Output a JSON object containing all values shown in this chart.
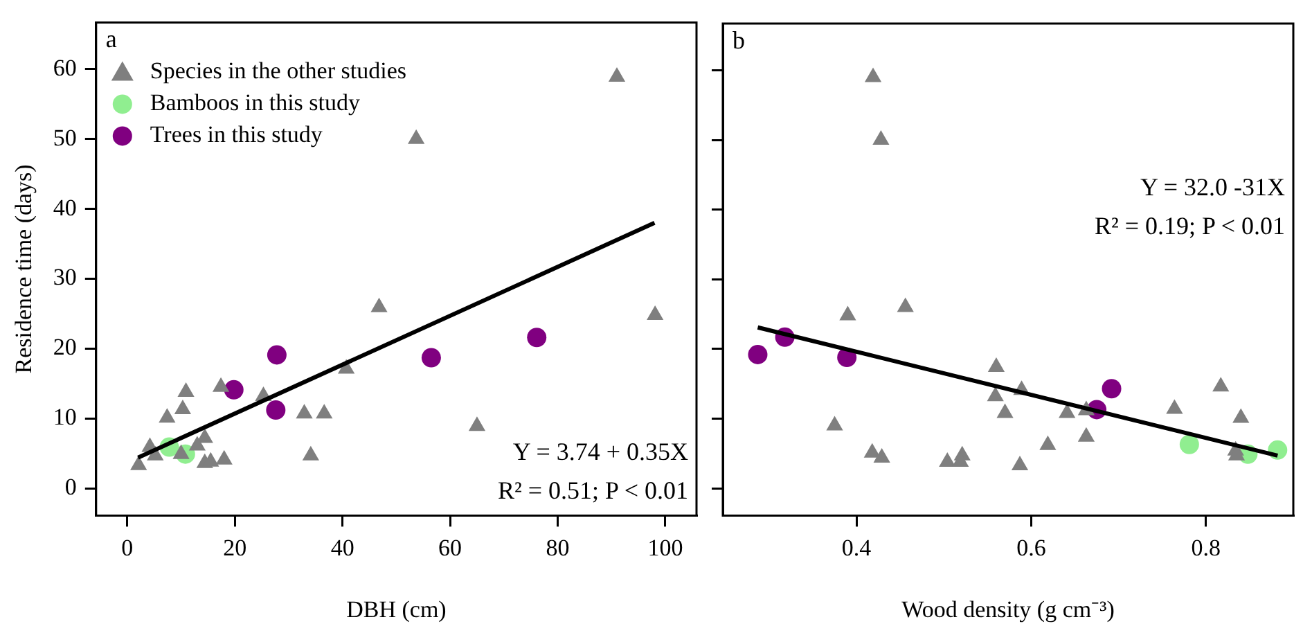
{
  "chart_data": [
    {
      "type": "scatter",
      "title": "a",
      "xlabel": "DBH (cm)",
      "ylabel": "Residence time (days)",
      "xlim": [
        -5.8,
        105.8
      ],
      "xticks": [
        0,
        20,
        40,
        60,
        80,
        100
      ],
      "ylim": [
        -3.9,
        66.7
      ],
      "yticks": [
        0,
        10,
        20,
        30,
        40,
        50,
        60
      ],
      "grid": false,
      "legend": "top left",
      "annotations": [
        "Y = 3.74 + 0.35X",
        "R² = 0.51; P < 0.01"
      ],
      "series": [
        {
          "name": "Species in the other studies",
          "color": "#7f7f7f",
          "marker": "triangle",
          "x": [
            91.0,
            53.7,
            46.8,
            98.1,
            40.7,
            17.4,
            10.9,
            10.3,
            7.4,
            25.3,
            32.9,
            36.6,
            65.0,
            14.4,
            13.0,
            4.2,
            5.2,
            10.0,
            14.4,
            15.5,
            18.0,
            34.1,
            2.1
          ],
          "values": [
            58.9,
            50.0,
            25.9,
            24.8,
            17.1,
            14.5,
            13.8,
            11.3,
            10.1,
            13.2,
            10.7,
            10.7,
            8.9,
            7.2,
            6.1,
            5.9,
            4.7,
            4.9,
            3.6,
            3.8,
            4.1,
            4.7,
            3.3
          ]
        },
        {
          "name": "Bamboos in this study",
          "color": "#90ee90",
          "marker": "circle",
          "x": [
            7.8,
            10.8
          ],
          "values": [
            5.9,
            4.9
          ]
        },
        {
          "name": "Trees in this study",
          "color": "#800080",
          "marker": "circle",
          "x": [
            27.8,
            19.8,
            27.6,
            56.5,
            76.1
          ],
          "values": [
            19.1,
            14.1,
            11.2,
            18.7,
            21.6
          ]
        },
        {
          "type": "line",
          "color": "#000000",
          "marker": "none",
          "x": [
            2,
            98
          ],
          "values": [
            4.4,
            38.0
          ]
        }
      ]
    },
    {
      "type": "scatter",
      "title": "b",
      "xlabel": "Wood density (g cm⁻³)",
      "xlim": [
        0.247,
        0.9
      ],
      "xticks": [
        0.4,
        0.6,
        0.8
      ],
      "ylim": [
        -3.9,
        66.7
      ],
      "yticks": [
        0,
        10,
        20,
        30,
        40,
        50,
        60
      ],
      "tick_labels": "x",
      "grid": false,
      "annotations": [
        "Y = 32.0 -31X",
        "R² = 0.19; P < 0.01"
      ],
      "series": [
        {
          "color": "#7f7f7f",
          "marker": "triangle",
          "x": [
            0.419,
            0.428,
            0.456,
            0.39,
            0.56,
            0.589,
            0.559,
            0.57,
            0.641,
            0.663,
            0.764,
            0.817,
            0.84,
            0.375,
            0.663,
            0.619,
            0.418,
            0.429,
            0.504,
            0.521,
            0.519,
            0.587,
            0.834,
            0.835
          ],
          "values": [
            59.0,
            50.0,
            26.0,
            24.8,
            17.4,
            14.1,
            13.2,
            10.8,
            10.8,
            11.2,
            11.4,
            14.6,
            10.1,
            9.0,
            7.4,
            6.2,
            5.1,
            4.4,
            3.8,
            4.7,
            3.8,
            3.3,
            5.4,
            4.7
          ]
        },
        {
          "color": "#90ee90",
          "marker": "circle",
          "x": [
            0.781,
            0.848,
            0.882
          ],
          "values": [
            6.3,
            4.9,
            5.5
          ]
        },
        {
          "color": "#800080",
          "marker": "circle",
          "x": [
            0.287,
            0.318,
            0.389,
            0.692,
            0.675
          ],
          "values": [
            19.2,
            21.7,
            18.8,
            14.3,
            11.3
          ]
        },
        {
          "type": "line",
          "color": "#000000",
          "marker": "none",
          "x": [
            0.287,
            0.882
          ],
          "values": [
            23.1,
            4.7
          ]
        }
      ]
    }
  ]
}
